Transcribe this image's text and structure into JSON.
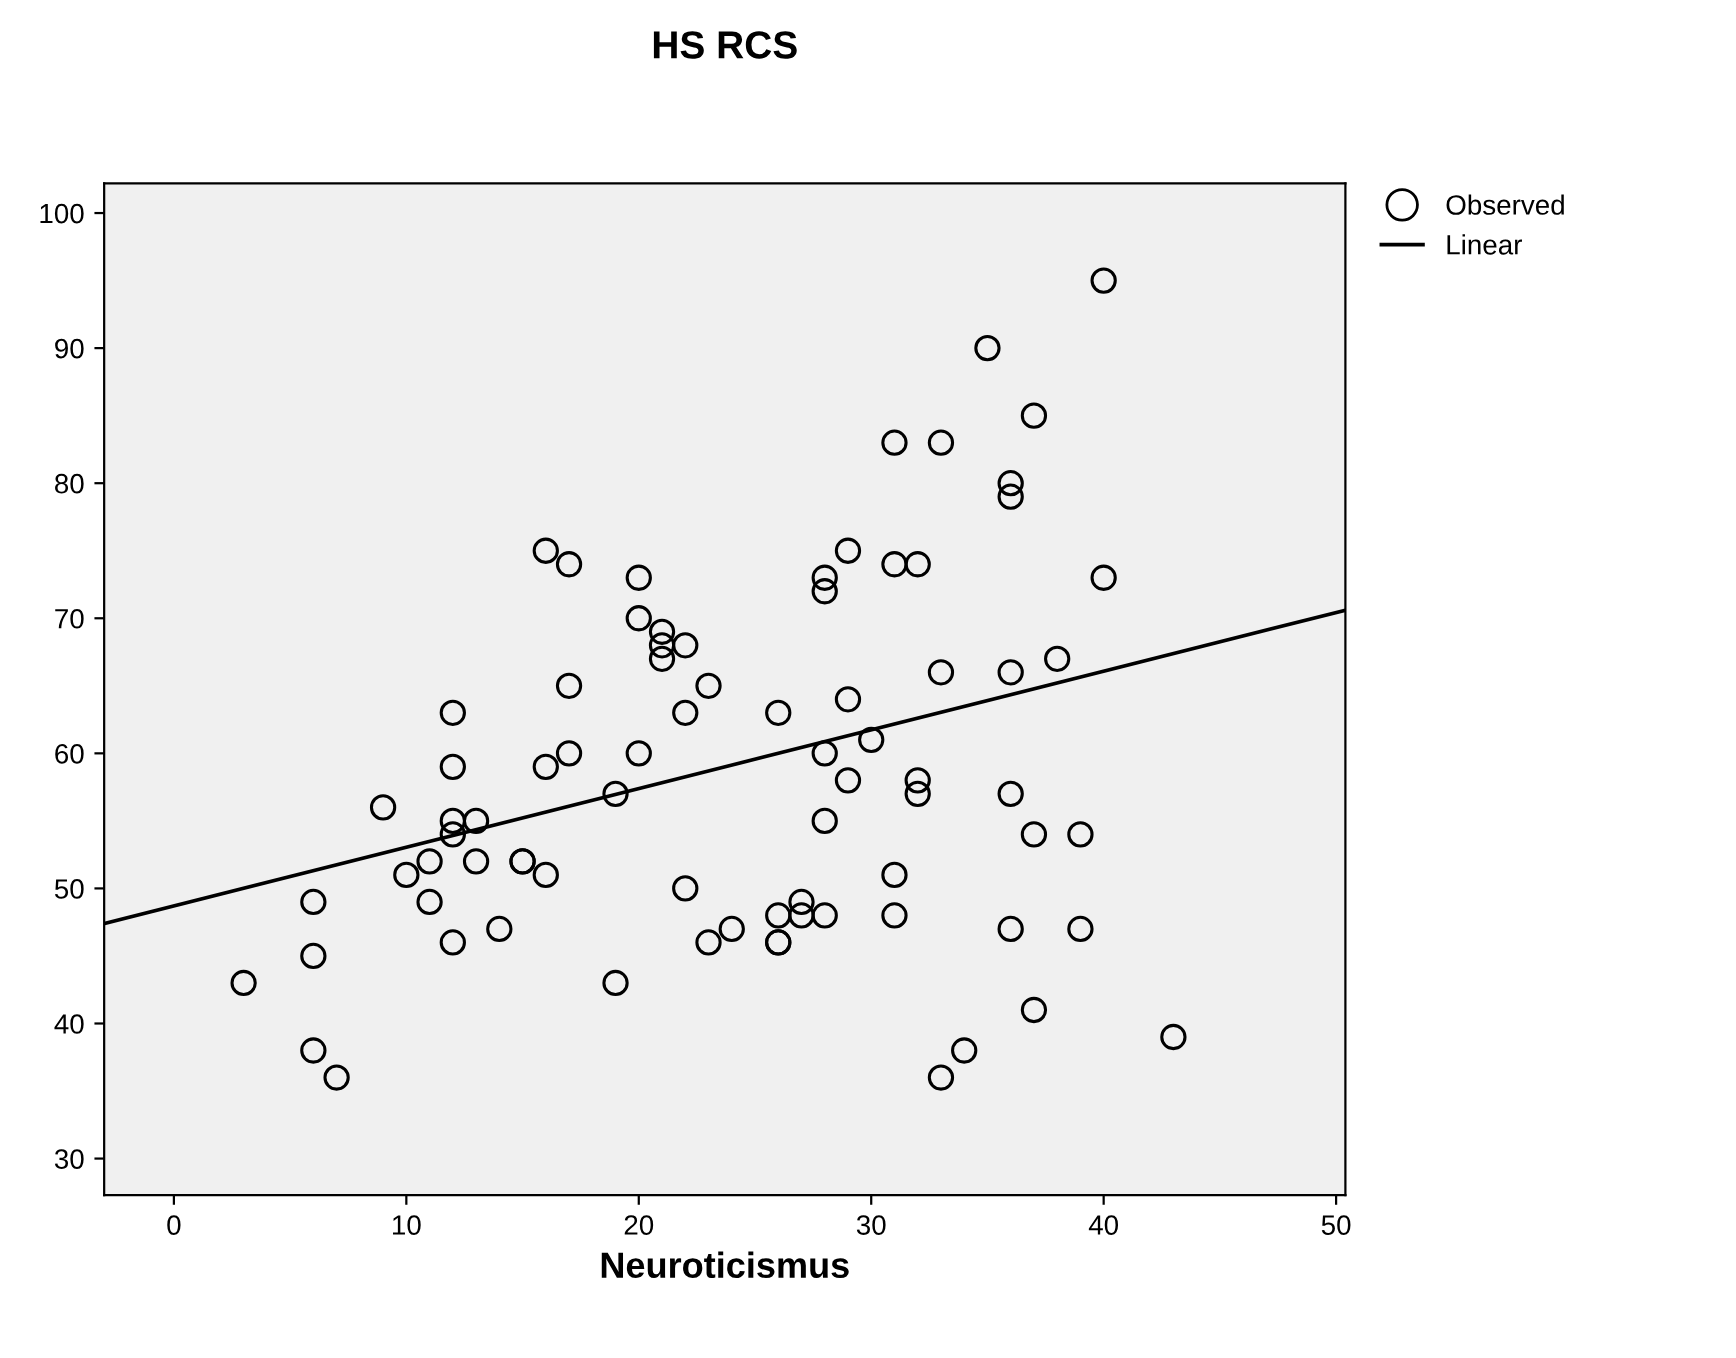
{
  "chart_data": {
    "type": "scatter",
    "title": "HS RCS",
    "xlabel": "Neuroticismus",
    "xlim": [
      -3,
      50.4
    ],
    "ylim": [
      27.3,
      102.2
    ],
    "xticks": [
      0,
      10,
      20,
      30,
      40,
      50
    ],
    "yticks": [
      30,
      40,
      50,
      60,
      70,
      80,
      90,
      100
    ],
    "grid": false,
    "legend": "top right",
    "series": [
      {
        "name": "Observed",
        "marker": "circle",
        "color": "#000000",
        "x": [
          3,
          6,
          6,
          6,
          7,
          9,
          10,
          11,
          11,
          12,
          12,
          12,
          12,
          12,
          13,
          13,
          14,
          15,
          15,
          16,
          16,
          16,
          17,
          17,
          17,
          19,
          19,
          20,
          20,
          20,
          21,
          21,
          21,
          22,
          22,
          22,
          23,
          23,
          24,
          26,
          26,
          26,
          26,
          27,
          27,
          28,
          28,
          28,
          28,
          28,
          29,
          29,
          29,
          30,
          31,
          31,
          31,
          31,
          32,
          32,
          32,
          33,
          33,
          33,
          34,
          35,
          36,
          36,
          36,
          36,
          36,
          37,
          37,
          37,
          38,
          39,
          39,
          40,
          40,
          43
        ],
        "values": [
          43,
          49,
          45,
          38,
          36,
          56,
          51,
          52,
          49,
          63,
          59,
          55,
          54,
          46,
          55,
          52,
          47,
          52,
          52,
          75,
          59,
          51,
          74,
          65,
          60,
          57,
          43,
          73,
          70,
          60,
          69,
          68,
          67,
          68,
          63,
          50,
          65,
          46,
          47,
          63,
          48,
          46,
          46,
          49,
          48,
          73,
          72,
          60,
          55,
          48,
          75,
          64,
          58,
          61,
          83,
          74,
          51,
          48,
          74,
          58,
          57,
          83,
          66,
          36,
          38,
          90,
          80,
          79,
          66,
          57,
          47,
          85,
          54,
          41,
          67,
          54,
          47,
          95,
          73,
          39
        ]
      },
      {
        "name": "Linear",
        "type": "line",
        "marker": "none",
        "color": "#000000",
        "x": [
          -3,
          50.4
        ],
        "values": [
          47.4,
          70.6
        ]
      }
    ]
  }
}
